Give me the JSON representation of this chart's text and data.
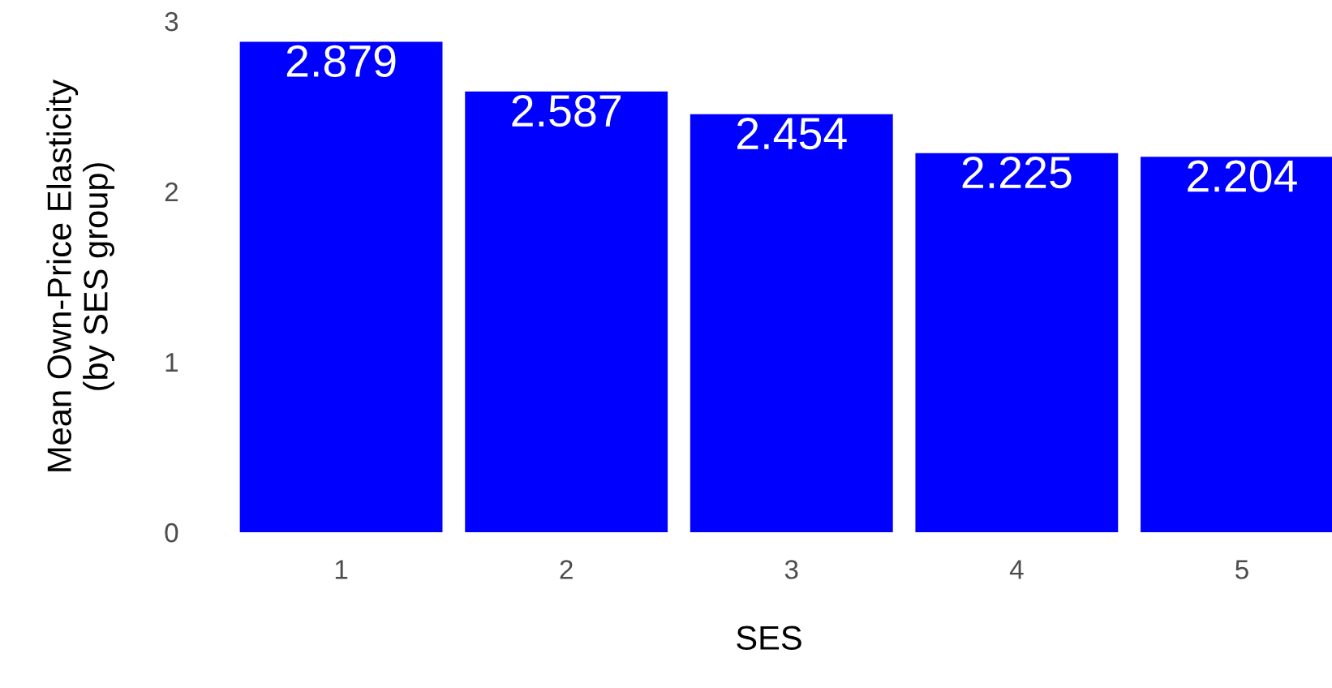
{
  "chart_data": {
    "type": "bar",
    "xlabel": "SES",
    "ylabel": "Mean Own-Price Elasticity\n(by SES group)",
    "categories": [
      "1",
      "2",
      "3",
      "4",
      "5"
    ],
    "values": [
      2.879,
      2.587,
      2.454,
      2.225,
      2.204
    ],
    "color": "#0000ff",
    "ylim": [
      0,
      3
    ],
    "yticks": [
      0,
      1,
      2,
      3
    ],
    "grid": false,
    "data_labels": true
  }
}
